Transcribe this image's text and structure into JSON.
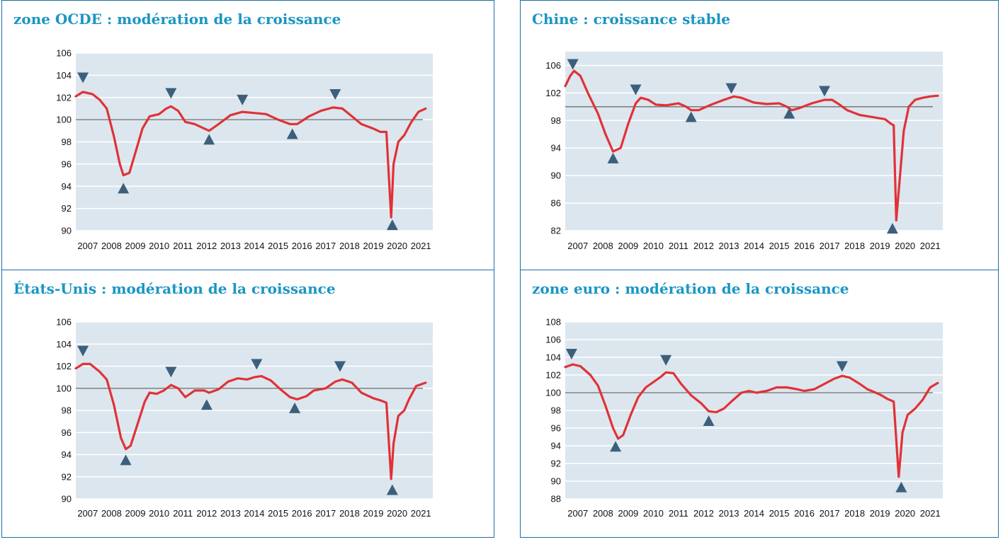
{
  "colors": {
    "title": "#1a96c4",
    "plot_bg": "#dce6ee",
    "grid": "#ffffff",
    "series": "#e03237",
    "baseline": "#808080",
    "marker": "#3c5f7c"
  },
  "panels": [
    {
      "title": "zone OCDE :  modération de la croissance"
    },
    {
      "title": "Chine : croissance stable"
    },
    {
      "title": "États-Unis : modération de la croissance"
    },
    {
      "title": "zone euro : modération de la croissance"
    }
  ],
  "chart_data": [
    {
      "type": "line",
      "title": "zone OCDE :  modération de la croissance",
      "x_labels": [
        "2007",
        "2008",
        "2009",
        "2010",
        "2011",
        "2012",
        "2013",
        "2014",
        "2015",
        "2016",
        "2017",
        "2018",
        "2019",
        "2020",
        "2021"
      ],
      "x_range": [
        2007,
        2022
      ],
      "ylim": [
        90,
        106
      ],
      "y_ticks": [
        90,
        92,
        94,
        96,
        98,
        100,
        102,
        104,
        106
      ],
      "baseline": 100,
      "series": [
        {
          "points": [
            [
              2007.0,
              102.1
            ],
            [
              2007.3,
              102.5
            ],
            [
              2007.7,
              102.3
            ],
            [
              2008.0,
              101.8
            ],
            [
              2008.3,
              101.0
            ],
            [
              2008.6,
              98.5
            ],
            [
              2008.85,
              96.0
            ],
            [
              2009.0,
              95.0
            ],
            [
              2009.25,
              95.2
            ],
            [
              2009.5,
              97.0
            ],
            [
              2009.8,
              99.2
            ],
            [
              2010.1,
              100.3
            ],
            [
              2010.5,
              100.5
            ],
            [
              2010.8,
              101.0
            ],
            [
              2011.0,
              101.2
            ],
            [
              2011.3,
              100.8
            ],
            [
              2011.6,
              99.8
            ],
            [
              2012.0,
              99.6
            ],
            [
              2012.4,
              99.2
            ],
            [
              2012.6,
              99.0
            ],
            [
              2013.0,
              99.6
            ],
            [
              2013.5,
              100.4
            ],
            [
              2014.0,
              100.7
            ],
            [
              2014.5,
              100.6
            ],
            [
              2015.0,
              100.5
            ],
            [
              2015.5,
              100.0
            ],
            [
              2016.0,
              99.6
            ],
            [
              2016.3,
              99.6
            ],
            [
              2016.8,
              100.3
            ],
            [
              2017.3,
              100.8
            ],
            [
              2017.8,
              101.1
            ],
            [
              2018.2,
              101.0
            ],
            [
              2018.6,
              100.3
            ],
            [
              2019.0,
              99.6
            ],
            [
              2019.5,
              99.2
            ],
            [
              2019.8,
              98.9
            ],
            [
              2020.05,
              98.9
            ],
            [
              2020.25,
              91.2
            ],
            [
              2020.35,
              96.0
            ],
            [
              2020.55,
              98.0
            ],
            [
              2020.8,
              98.6
            ],
            [
              2021.1,
              99.8
            ],
            [
              2021.4,
              100.7
            ],
            [
              2021.7,
              101.0
            ]
          ]
        }
      ],
      "peaks": [
        [
          2007.3,
          103.8
        ],
        [
          2011.0,
          102.4
        ],
        [
          2014.0,
          101.8
        ],
        [
          2017.9,
          102.3
        ]
      ],
      "troughs": [
        [
          2009.0,
          93.8
        ],
        [
          2012.6,
          98.2
        ],
        [
          2016.1,
          98.7
        ],
        [
          2020.3,
          90.5
        ]
      ]
    },
    {
      "type": "line",
      "title": "Chine : croissance stable",
      "x_labels": [
        "2007",
        "2008",
        "2009",
        "2010",
        "2011",
        "2012",
        "2013",
        "2014",
        "2015",
        "2016",
        "2017",
        "2018",
        "2019",
        "2020",
        "2021"
      ],
      "x_range": [
        2007,
        2022
      ],
      "ylim": [
        82,
        108
      ],
      "y_ticks": [
        82,
        86,
        90,
        94,
        98,
        102,
        106
      ],
      "baseline": 100,
      "series": [
        {
          "points": [
            [
              2007.0,
              103.0
            ],
            [
              2007.2,
              104.5
            ],
            [
              2007.35,
              105.2
            ],
            [
              2007.6,
              104.5
            ],
            [
              2007.9,
              102.0
            ],
            [
              2008.3,
              99.0
            ],
            [
              2008.6,
              96.0
            ],
            [
              2008.9,
              93.5
            ],
            [
              2009.2,
              94.0
            ],
            [
              2009.5,
              97.5
            ],
            [
              2009.8,
              100.5
            ],
            [
              2010.0,
              101.3
            ],
            [
              2010.3,
              101.0
            ],
            [
              2010.6,
              100.3
            ],
            [
              2011.0,
              100.2
            ],
            [
              2011.5,
              100.5
            ],
            [
              2011.8,
              100.0
            ],
            [
              2012.0,
              99.5
            ],
            [
              2012.3,
              99.5
            ],
            [
              2012.8,
              100.3
            ],
            [
              2013.3,
              101.0
            ],
            [
              2013.7,
              101.5
            ],
            [
              2014.0,
              101.3
            ],
            [
              2014.5,
              100.6
            ],
            [
              2015.0,
              100.4
            ],
            [
              2015.5,
              100.5
            ],
            [
              2015.8,
              100.0
            ],
            [
              2016.0,
              99.5
            ],
            [
              2016.3,
              99.8
            ],
            [
              2016.8,
              100.5
            ],
            [
              2017.3,
              101.0
            ],
            [
              2017.6,
              101.0
            ],
            [
              2017.9,
              100.3
            ],
            [
              2018.2,
              99.5
            ],
            [
              2018.7,
              98.8
            ],
            [
              2019.2,
              98.5
            ],
            [
              2019.7,
              98.2
            ],
            [
              2019.95,
              97.5
            ],
            [
              2020.05,
              97.3
            ],
            [
              2020.15,
              83.5
            ],
            [
              2020.3,
              90.0
            ],
            [
              2020.45,
              96.5
            ],
            [
              2020.65,
              100.0
            ],
            [
              2020.9,
              101.0
            ],
            [
              2021.2,
              101.3
            ],
            [
              2021.5,
              101.5
            ],
            [
              2021.8,
              101.6
            ]
          ]
        }
      ],
      "peaks": [
        [
          2007.3,
          106.2
        ],
        [
          2009.8,
          102.5
        ],
        [
          2013.6,
          102.7
        ],
        [
          2017.3,
          102.3
        ]
      ],
      "troughs": [
        [
          2008.9,
          92.5
        ],
        [
          2012.0,
          98.5
        ],
        [
          2015.9,
          99.0
        ],
        [
          2020.0,
          82.3
        ]
      ]
    },
    {
      "type": "line",
      "title": "États-Unis : modération de la croissance",
      "x_labels": [
        "2007",
        "2008",
        "2009",
        "2010",
        "2011",
        "2012",
        "2013",
        "2014",
        "2015",
        "2016",
        "2017",
        "2018",
        "2019",
        "2020",
        "2021"
      ],
      "x_range": [
        2007,
        2022
      ],
      "ylim": [
        90,
        106
      ],
      "y_ticks": [
        90,
        92,
        94,
        96,
        98,
        100,
        102,
        104,
        106
      ],
      "baseline": 100,
      "series": [
        {
          "points": [
            [
              2007.0,
              101.8
            ],
            [
              2007.3,
              102.2
            ],
            [
              2007.6,
              102.2
            ],
            [
              2008.0,
              101.5
            ],
            [
              2008.3,
              100.8
            ],
            [
              2008.6,
              98.5
            ],
            [
              2008.9,
              95.5
            ],
            [
              2009.1,
              94.5
            ],
            [
              2009.3,
              94.8
            ],
            [
              2009.6,
              96.8
            ],
            [
              2009.9,
              98.8
            ],
            [
              2010.1,
              99.6
            ],
            [
              2010.4,
              99.5
            ],
            [
              2010.7,
              99.8
            ],
            [
              2011.0,
              100.3
            ],
            [
              2011.3,
              100.0
            ],
            [
              2011.6,
              99.2
            ],
            [
              2012.0,
              99.8
            ],
            [
              2012.4,
              99.8
            ],
            [
              2012.6,
              99.6
            ],
            [
              2013.0,
              99.9
            ],
            [
              2013.4,
              100.6
            ],
            [
              2013.8,
              100.9
            ],
            [
              2014.2,
              100.8
            ],
            [
              2014.5,
              101.0
            ],
            [
              2014.8,
              101.1
            ],
            [
              2015.2,
              100.7
            ],
            [
              2015.6,
              99.9
            ],
            [
              2016.0,
              99.2
            ],
            [
              2016.3,
              99.0
            ],
            [
              2016.7,
              99.3
            ],
            [
              2017.0,
              99.8
            ],
            [
              2017.5,
              100.0
            ],
            [
              2017.9,
              100.6
            ],
            [
              2018.2,
              100.8
            ],
            [
              2018.6,
              100.5
            ],
            [
              2019.0,
              99.6
            ],
            [
              2019.5,
              99.1
            ],
            [
              2019.8,
              98.9
            ],
            [
              2020.05,
              98.7
            ],
            [
              2020.25,
              91.8
            ],
            [
              2020.35,
              95.0
            ],
            [
              2020.55,
              97.5
            ],
            [
              2020.8,
              98.0
            ],
            [
              2021.0,
              99.0
            ],
            [
              2021.3,
              100.2
            ],
            [
              2021.7,
              100.5
            ]
          ]
        }
      ],
      "peaks": [
        [
          2007.3,
          103.4
        ],
        [
          2011.0,
          101.5
        ],
        [
          2014.6,
          102.2
        ],
        [
          2018.1,
          102.0
        ]
      ],
      "troughs": [
        [
          2009.1,
          93.5
        ],
        [
          2012.5,
          98.5
        ],
        [
          2016.2,
          98.2
        ],
        [
          2020.3,
          90.8
        ]
      ]
    },
    {
      "type": "line",
      "title": "zone euro : modération de la croissance",
      "x_labels": [
        "2007",
        "2008",
        "2009",
        "2010",
        "2011",
        "2012",
        "2013",
        "2014",
        "2015",
        "2016",
        "2017",
        "2018",
        "2019",
        "2020",
        "2021"
      ],
      "x_range": [
        2007,
        2022
      ],
      "ylim": [
        88,
        108
      ],
      "y_ticks": [
        88,
        90,
        92,
        94,
        96,
        98,
        100,
        102,
        104,
        106,
        108
      ],
      "baseline": 100,
      "series": [
        {
          "points": [
            [
              2007.0,
              102.9
            ],
            [
              2007.3,
              103.2
            ],
            [
              2007.6,
              103.0
            ],
            [
              2008.0,
              102.0
            ],
            [
              2008.3,
              100.8
            ],
            [
              2008.6,
              98.5
            ],
            [
              2008.9,
              96.0
            ],
            [
              2009.1,
              94.8
            ],
            [
              2009.3,
              95.2
            ],
            [
              2009.6,
              97.5
            ],
            [
              2009.9,
              99.5
            ],
            [
              2010.2,
              100.6
            ],
            [
              2010.5,
              101.2
            ],
            [
              2010.8,
              101.8
            ],
            [
              2011.0,
              102.3
            ],
            [
              2011.3,
              102.2
            ],
            [
              2011.6,
              101.0
            ],
            [
              2012.0,
              99.7
            ],
            [
              2012.4,
              98.8
            ],
            [
              2012.7,
              97.9
            ],
            [
              2013.0,
              97.8
            ],
            [
              2013.3,
              98.2
            ],
            [
              2013.6,
              99.0
            ],
            [
              2014.0,
              100.0
            ],
            [
              2014.3,
              100.2
            ],
            [
              2014.6,
              100.0
            ],
            [
              2015.0,
              100.2
            ],
            [
              2015.4,
              100.6
            ],
            [
              2015.8,
              100.6
            ],
            [
              2016.2,
              100.4
            ],
            [
              2016.5,
              100.2
            ],
            [
              2016.9,
              100.4
            ],
            [
              2017.3,
              101.0
            ],
            [
              2017.7,
              101.6
            ],
            [
              2018.0,
              101.9
            ],
            [
              2018.3,
              101.7
            ],
            [
              2018.7,
              101.0
            ],
            [
              2019.0,
              100.4
            ],
            [
              2019.5,
              99.8
            ],
            [
              2019.8,
              99.3
            ],
            [
              2020.05,
              99.0
            ],
            [
              2020.25,
              90.5
            ],
            [
              2020.4,
              95.5
            ],
            [
              2020.6,
              97.5
            ],
            [
              2020.9,
              98.2
            ],
            [
              2021.2,
              99.2
            ],
            [
              2021.5,
              100.6
            ],
            [
              2021.8,
              101.1
            ]
          ]
        }
      ],
      "peaks": [
        [
          2007.25,
          104.4
        ],
        [
          2011.0,
          103.7
        ],
        [
          2018.0,
          103.0
        ]
      ],
      "troughs": [
        [
          2009.0,
          93.9
        ],
        [
          2012.7,
          96.8
        ],
        [
          2020.35,
          89.3
        ]
      ]
    }
  ]
}
